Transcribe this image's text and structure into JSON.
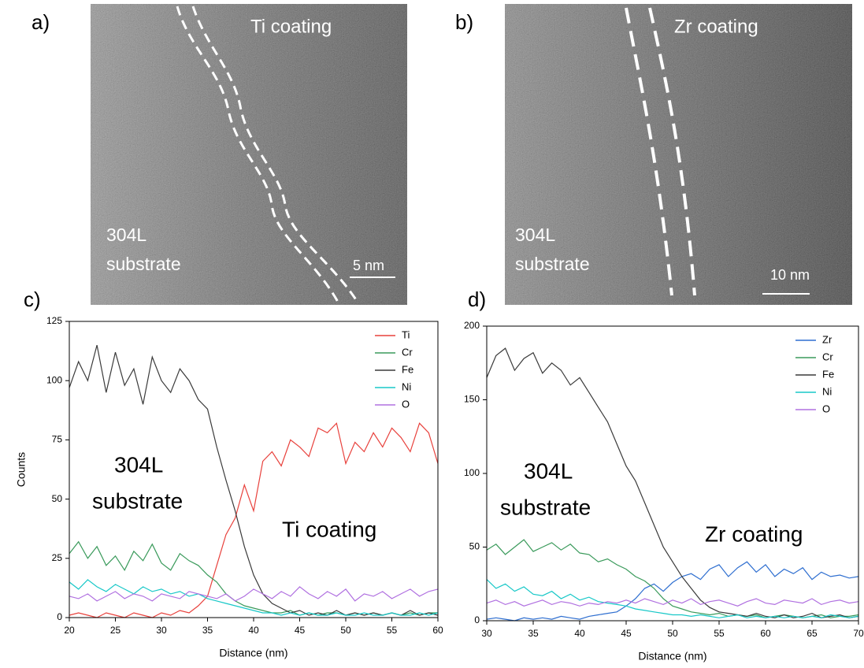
{
  "panels": [
    {
      "label": "a)",
      "coating": "Ti coating",
      "substrate": [
        "304L",
        "substrate"
      ],
      "scale_bar": "5 nm"
    },
    {
      "label": "b)",
      "coating": "Zr coating",
      "substrate": [
        "304L",
        "substrate"
      ],
      "scale_bar": "10 nm"
    }
  ],
  "chart_data": [
    {
      "type": "line",
      "label": "c)",
      "xlabel": "Distance (nm)",
      "ylabel": "Counts",
      "annotations": [
        "304L",
        "substrate",
        "Ti coating"
      ],
      "xlim": [
        20,
        60
      ],
      "xticks": [
        20,
        25,
        30,
        35,
        40,
        45,
        50,
        55,
        60
      ],
      "ylim": [
        0,
        125
      ],
      "yticks": [
        0,
        25,
        50,
        75,
        100,
        125
      ],
      "legend": "upper right",
      "x": [
        20,
        21,
        22,
        23,
        24,
        25,
        26,
        27,
        28,
        29,
        30,
        31,
        32,
        33,
        34,
        35,
        36,
        37,
        38,
        39,
        40,
        41,
        42,
        43,
        44,
        45,
        46,
        47,
        48,
        49,
        50,
        51,
        52,
        53,
        54,
        55,
        56,
        57,
        58,
        59,
        60
      ],
      "series": [
        {
          "name": "Ti",
          "color": "#e8413c",
          "values": [
            1,
            2,
            1,
            0,
            2,
            1,
            0,
            2,
            1,
            0,
            2,
            1,
            3,
            2,
            5,
            9,
            22,
            35,
            42,
            56,
            45,
            66,
            70,
            64,
            75,
            72,
            68,
            80,
            78,
            82,
            65,
            74,
            70,
            78,
            72,
            80,
            76,
            70,
            82,
            78,
            65
          ]
        },
        {
          "name": "Cr",
          "color": "#3a9a5b",
          "values": [
            27,
            32,
            25,
            30,
            22,
            26,
            20,
            28,
            24,
            31,
            23,
            20,
            27,
            24,
            22,
            18,
            15,
            10,
            7,
            5,
            4,
            3,
            2,
            2,
            3,
            1,
            2,
            1,
            2,
            2,
            1,
            2,
            1,
            2,
            1,
            2,
            1,
            2,
            1,
            2,
            2
          ]
        },
        {
          "name": "Fe",
          "color": "#3a3a3a",
          "values": [
            97,
            108,
            100,
            115,
            95,
            112,
            98,
            105,
            90,
            110,
            100,
            95,
            105,
            100,
            92,
            88,
            72,
            58,
            45,
            30,
            18,
            10,
            6,
            4,
            2,
            3,
            1,
            2,
            1,
            3,
            1,
            2,
            1,
            2,
            1,
            2,
            1,
            3,
            1,
            2,
            1
          ]
        },
        {
          "name": "Ni",
          "color": "#18c8c8",
          "values": [
            15,
            12,
            16,
            13,
            11,
            14,
            12,
            10,
            13,
            11,
            12,
            10,
            11,
            9,
            10,
            8,
            7,
            6,
            5,
            4,
            3,
            2,
            2,
            1,
            2,
            1,
            2,
            1,
            1,
            2,
            1,
            1,
            2,
            1,
            1,
            2,
            1,
            1,
            2,
            1,
            2
          ]
        },
        {
          "name": "O",
          "color": "#b070e0",
          "values": [
            9,
            8,
            10,
            7,
            9,
            11,
            8,
            10,
            9,
            7,
            10,
            9,
            8,
            11,
            10,
            9,
            8,
            10,
            7,
            9,
            12,
            10,
            8,
            11,
            9,
            13,
            10,
            8,
            11,
            9,
            12,
            7,
            10,
            9,
            11,
            8,
            10,
            12,
            9,
            11,
            12
          ]
        }
      ]
    },
    {
      "type": "line",
      "label": "d)",
      "xlabel": "Distance (nm)",
      "annotations": [
        "304L",
        "substrate",
        "Zr coating"
      ],
      "xlim": [
        30,
        70
      ],
      "xticks": [
        30,
        35,
        40,
        45,
        50,
        55,
        60,
        65,
        70
      ],
      "ylim": [
        0,
        200
      ],
      "yticks": [
        0,
        50,
        100,
        150,
        200
      ],
      "legend": "upper right",
      "x": [
        30,
        31,
        32,
        33,
        34,
        35,
        36,
        37,
        38,
        39,
        40,
        41,
        42,
        43,
        44,
        45,
        46,
        47,
        48,
        49,
        50,
        51,
        52,
        53,
        54,
        55,
        56,
        57,
        58,
        59,
        60,
        61,
        62,
        63,
        64,
        65,
        66,
        67,
        68,
        69,
        70
      ],
      "series": [
        {
          "name": "Zr",
          "color": "#2f6fd0",
          "values": [
            1,
            2,
            1,
            0,
            2,
            1,
            2,
            1,
            3,
            2,
            1,
            3,
            4,
            5,
            6,
            10,
            15,
            22,
            25,
            20,
            26,
            30,
            32,
            28,
            35,
            38,
            30,
            36,
            40,
            33,
            38,
            30,
            35,
            32,
            36,
            28,
            33,
            30,
            31,
            29,
            30
          ]
        },
        {
          "name": "Cr",
          "color": "#3a9a5b",
          "values": [
            48,
            52,
            45,
            50,
            55,
            47,
            50,
            53,
            48,
            52,
            46,
            45,
            40,
            42,
            38,
            35,
            30,
            27,
            22,
            15,
            10,
            8,
            6,
            5,
            4,
            5,
            3,
            4,
            3,
            4,
            2,
            3,
            4,
            3,
            2,
            3,
            4,
            2,
            3,
            3,
            4
          ]
        },
        {
          "name": "Fe",
          "color": "#3a3a3a",
          "values": [
            165,
            180,
            185,
            170,
            178,
            182,
            168,
            175,
            170,
            160,
            165,
            155,
            145,
            135,
            120,
            105,
            95,
            80,
            65,
            50,
            40,
            30,
            22,
            14,
            9,
            6,
            5,
            4,
            3,
            5,
            3,
            2,
            4,
            2,
            3,
            5,
            2,
            3,
            4,
            2,
            3
          ]
        },
        {
          "name": "Ni",
          "color": "#18c8c8",
          "values": [
            28,
            22,
            25,
            20,
            23,
            18,
            17,
            20,
            15,
            18,
            14,
            16,
            13,
            12,
            11,
            10,
            8,
            7,
            6,
            5,
            4,
            4,
            3,
            4,
            3,
            2,
            3,
            4,
            2,
            3,
            2,
            3,
            2,
            3,
            2,
            3,
            2,
            4,
            3,
            2,
            3
          ]
        },
        {
          "name": "O",
          "color": "#b070e0",
          "values": [
            12,
            14,
            11,
            13,
            10,
            12,
            14,
            11,
            13,
            12,
            10,
            12,
            11,
            13,
            12,
            14,
            12,
            15,
            13,
            11,
            14,
            12,
            15,
            11,
            13,
            14,
            12,
            10,
            13,
            15,
            12,
            11,
            14,
            13,
            12,
            15,
            11,
            13,
            14,
            12,
            13
          ]
        }
      ]
    }
  ]
}
